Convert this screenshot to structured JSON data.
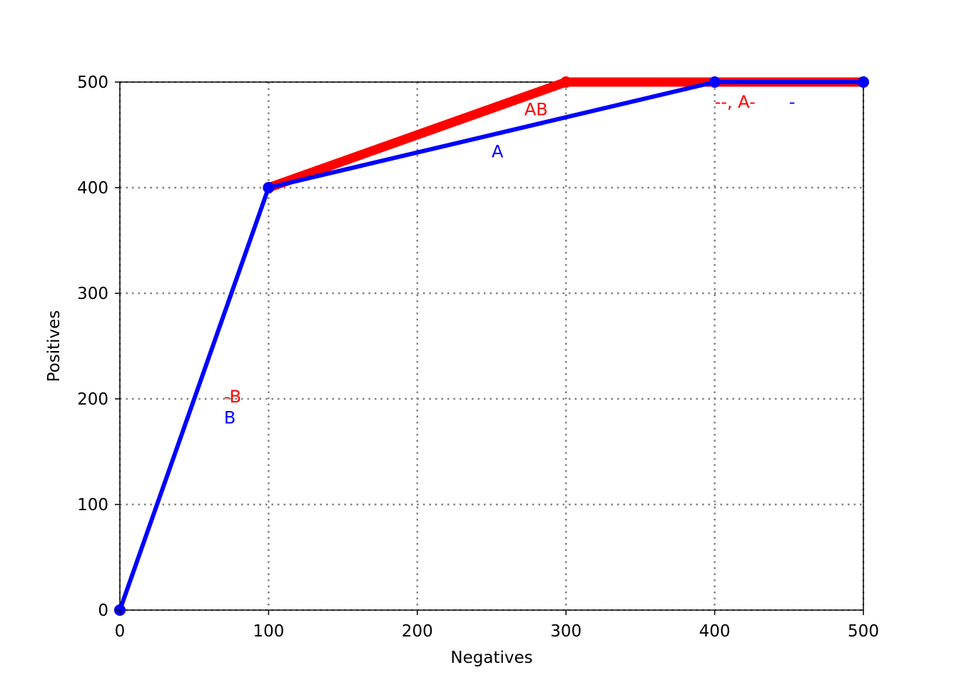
{
  "chart_data": {
    "type": "line",
    "title": "",
    "xlabel": "Negatives",
    "ylabel": "Positives",
    "xlim": [
      0,
      500
    ],
    "ylim": [
      0,
      500
    ],
    "xticks": [
      0,
      100,
      200,
      300,
      400,
      500
    ],
    "yticks": [
      0,
      100,
      200,
      300,
      400,
      500
    ],
    "xtick_labels": [
      "0",
      "100",
      "200",
      "300",
      "400",
      "500"
    ],
    "ytick_labels": [
      "0",
      "100",
      "200",
      "300",
      "400",
      "500"
    ],
    "grid": true,
    "series": [
      {
        "color": "#ff0000",
        "segments": [
          {
            "x": [
              0,
              100
            ],
            "y": [
              0,
              400
            ],
            "weight": "thin"
          },
          {
            "x": [
              100,
              300
            ],
            "y": [
              400,
              500
            ],
            "weight": "thick"
          },
          {
            "x": [
              300,
              500
            ],
            "y": [
              500,
              500
            ],
            "weight": "thick"
          }
        ],
        "markers": {
          "x": [
            0,
            100,
            300,
            500
          ],
          "y": [
            0,
            400,
            500,
            500
          ]
        }
      },
      {
        "color": "#0000ff",
        "segments": [
          {
            "x": [
              0,
              100
            ],
            "y": [
              0,
              400
            ],
            "weight": "medium"
          },
          {
            "x": [
              100,
              400
            ],
            "y": [
              400,
              500
            ],
            "weight": "medium"
          },
          {
            "x": [
              400,
              500
            ],
            "y": [
              500,
              500
            ],
            "weight": "medium"
          }
        ],
        "markers": {
          "x": [
            0,
            100,
            400,
            500
          ],
          "y": [
            0,
            400,
            500,
            500
          ]
        }
      }
    ],
    "annotations": [
      {
        "text": "AB",
        "x": 272,
        "y": 474,
        "color": "#ff0000"
      },
      {
        "text": "A",
        "x": 250,
        "y": 434,
        "color": "#0000ff"
      },
      {
        "text": "-B",
        "x": 70,
        "y": 202,
        "color": "#ff0000"
      },
      {
        "text": "B",
        "x": 70,
        "y": 182,
        "color": "#0000ff"
      },
      {
        "text": "--, A-",
        "x": 400,
        "y": 481,
        "color": "#ff0000"
      },
      {
        "text": "-",
        "x": 450,
        "y": 481,
        "color": "#0000ff"
      }
    ]
  }
}
